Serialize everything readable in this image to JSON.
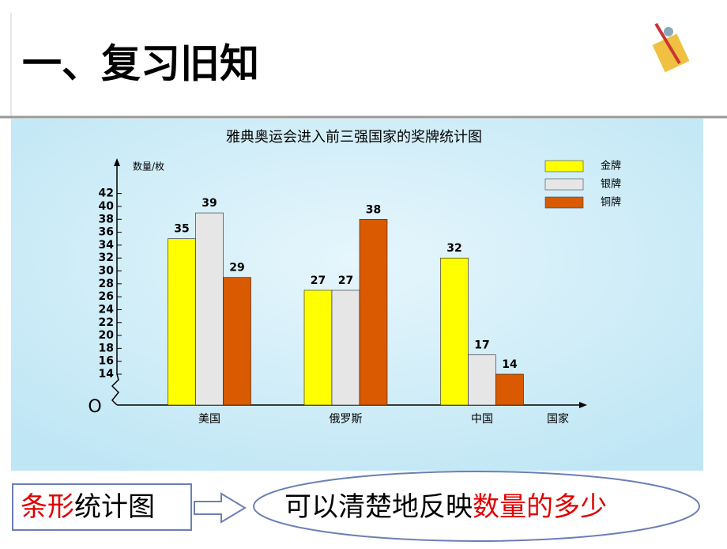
{
  "header": {
    "title": "一、复习旧知"
  },
  "chart_data": {
    "type": "bar",
    "title": "雅典奥运会进入前三强国家的奖牌统计图",
    "y_label": "数量/枚",
    "x_label": "国家",
    "categories": [
      "美国",
      "俄罗斯",
      "中国"
    ],
    "series": [
      {
        "name": "金牌",
        "color": "#ffff00",
        "values": [
          35,
          27,
          32
        ]
      },
      {
        "name": "银牌",
        "color": "#e6e6e6",
        "values": [
          39,
          27,
          17
        ]
      },
      {
        "name": "铜牌",
        "color": "#d95a00",
        "values": [
          29,
          38,
          14
        ]
      }
    ],
    "ylim": [
      0,
      46
    ],
    "y_break": [
      0,
      14
    ],
    "yticks": [
      {
        "value": 0,
        "label": "O"
      },
      14,
      16,
      18,
      20,
      22,
      24,
      26,
      28,
      30,
      32,
      34,
      36,
      38,
      40,
      42
    ],
    "legend": "top-right"
  },
  "footer": {
    "box_text_parts": [
      "条形",
      "统计图"
    ],
    "ellipse_text_parts": [
      "可以清楚地反映",
      "数量的多少"
    ]
  }
}
